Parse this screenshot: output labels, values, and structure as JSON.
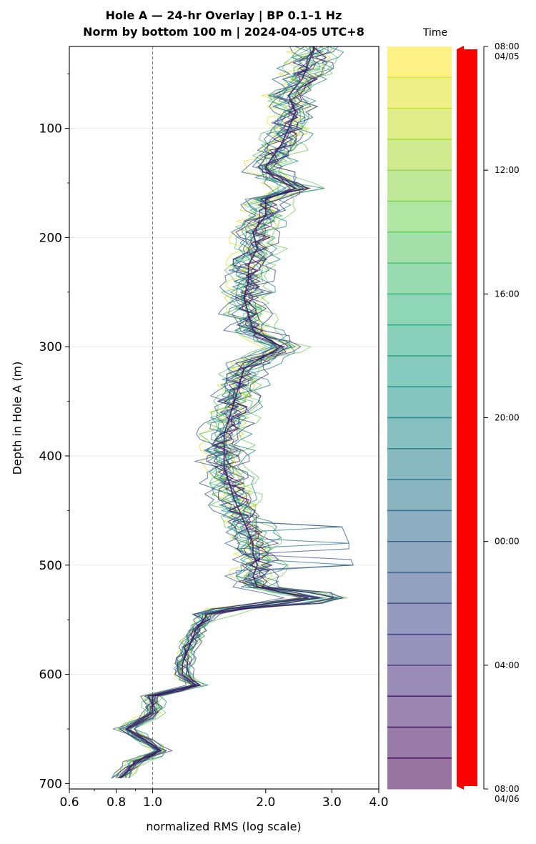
{
  "header": {
    "title_line1": "Hole A — 24-hr Overlay  |  BP 0.1–1 Hz",
    "title_line2": "Norm by bottom 100 m  |  2024-04-05 UTC+8"
  },
  "colorbar": {
    "label": "Time",
    "ticks": [
      {
        "label": "08:00",
        "sub": "04/05",
        "hour": 0
      },
      {
        "label": "12:00",
        "sub": "",
        "hour": 4
      },
      {
        "label": "16:00",
        "sub": "",
        "hour": 8
      },
      {
        "label": "20:00",
        "sub": "",
        "hour": 12
      },
      {
        "label": "00:00",
        "sub": "",
        "hour": 16
      },
      {
        "label": "04:00",
        "sub": "",
        "hour": 20
      },
      {
        "label": "08:00",
        "sub": "04/06",
        "hour": 24
      }
    ],
    "colormap": "viridis",
    "bands": 24,
    "accent": "#ff0000"
  },
  "chart_data": {
    "type": "line",
    "title": "Hole A — 24-hr Overlay  |  BP 0.1–1 Hz / Norm by bottom 100 m  |  2024-04-05 UTC+8",
    "xlabel": "normalized RMS  (log scale)",
    "ylabel": "Depth in Hole A (m)",
    "xscale": "log",
    "xlim": [
      0.6,
      4.0
    ],
    "ylim": [
      705,
      25
    ],
    "x_ticks": [
      "0.6",
      "0.8",
      "1.0",
      "2.0",
      "3.0",
      "4.0"
    ],
    "y_ticks": [
      "100",
      "200",
      "300",
      "400",
      "500",
      "600",
      "700"
    ],
    "grid": "horizontal",
    "reference_line": {
      "x": 1.0,
      "style": "dashed"
    },
    "series_count": 24,
    "median_profile": {
      "depth": [
        25,
        40,
        55,
        70,
        85,
        100,
        115,
        125,
        135,
        145,
        155,
        165,
        180,
        195,
        210,
        225,
        240,
        255,
        270,
        285,
        300,
        310,
        320,
        335,
        350,
        365,
        380,
        395,
        410,
        425,
        440,
        450,
        460,
        470,
        480,
        490,
        500,
        510,
        520,
        530,
        540,
        545,
        560,
        575,
        590,
        600,
        610,
        620,
        635,
        650,
        660,
        670,
        680,
        690,
        695
      ],
      "rms": [
        2.7,
        2.6,
        2.5,
        2.3,
        2.4,
        2.3,
        2.2,
        2.1,
        2.0,
        2.1,
        2.4,
        2.0,
        2.0,
        1.85,
        1.9,
        1.8,
        1.8,
        1.75,
        1.8,
        1.85,
        2.2,
        1.95,
        1.75,
        1.7,
        1.65,
        1.6,
        1.55,
        1.55,
        1.55,
        1.6,
        1.65,
        1.7,
        1.75,
        1.8,
        1.85,
        1.85,
        1.9,
        1.85,
        1.9,
        2.6,
        1.6,
        1.4,
        1.3,
        1.25,
        1.2,
        1.2,
        1.3,
        1.0,
        1.0,
        0.85,
        0.95,
        1.05,
        0.9,
        0.85,
        0.82
      ]
    }
  }
}
